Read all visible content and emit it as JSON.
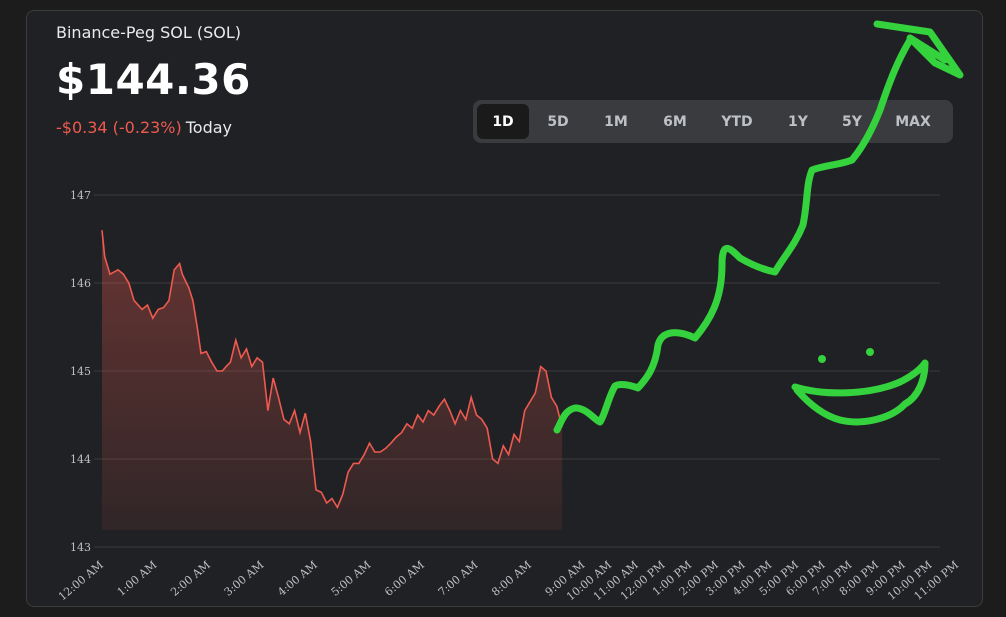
{
  "header": {
    "asset_name": "Binance-Peg SOL (SOL)",
    "price": "$144.36",
    "change": "-$0.34 (-0.23%)",
    "period": "Today"
  },
  "ranges": [
    "1D",
    "5D",
    "1M",
    "6M",
    "YTD",
    "1Y",
    "5Y",
    "MAX"
  ],
  "active_range": "1D",
  "colors": {
    "line": "#ee5a4f",
    "scribble": "#34d23c",
    "grid": "#3c3c3c",
    "change": "#ee5a4f"
  },
  "chart_data": {
    "type": "line",
    "ylim": [
      143,
      147
    ],
    "y_ticks": [
      "143",
      "144",
      "145",
      "146",
      "147"
    ],
    "x_ticks": [
      "12:00 AM",
      "1:00 AM",
      "2:00 AM",
      "3:00 AM",
      "4:00 AM",
      "5:00 AM",
      "6:00 AM",
      "7:00 AM",
      "8:00 AM",
      "9:00 AM",
      "10:00 AM",
      "11:00 AM",
      "12:00 PM",
      "1:00 PM",
      "2:00 PM",
      "3:00 PM",
      "4:00 PM",
      "5:00 PM",
      "6:00 PM",
      "7:00 PM",
      "8:00 PM",
      "9:00 PM",
      "10:00 PM",
      "11:00 PM"
    ],
    "series": [
      {
        "x": [
          0,
          0.05,
          0.15,
          0.3,
          0.4,
          0.5,
          0.6,
          0.75,
          0.85,
          0.95,
          1.05,
          1.15,
          1.25,
          1.35,
          1.45,
          1.5,
          1.58,
          1.62,
          1.7,
          1.78,
          1.85,
          1.95,
          2.05,
          2.15,
          2.25,
          2.32,
          2.4,
          2.5,
          2.6,
          2.7,
          2.8,
          2.9,
          3.0,
          3.1,
          3.2,
          3.3,
          3.4,
          3.5,
          3.6,
          3.7,
          3.8,
          3.9,
          4.0,
          4.1,
          4.2,
          4.3,
          4.4,
          4.5,
          4.6,
          4.7,
          4.8,
          4.9,
          5.0,
          5.1,
          5.2,
          5.3,
          5.4,
          5.5,
          5.6,
          5.7,
          5.8,
          5.9,
          6.0,
          6.1,
          6.2,
          6.3,
          6.4,
          6.5,
          6.6,
          6.7,
          6.8,
          6.9,
          7.0,
          7.1,
          7.2,
          7.3,
          7.4,
          7.5,
          7.6,
          7.7,
          7.8,
          7.9,
          8.0,
          8.1,
          8.2,
          8.3,
          8.4,
          8.5,
          8.6
        ],
        "y": [
          146.6,
          146.3,
          146.1,
          146.15,
          146.1,
          146.0,
          145.8,
          145.7,
          145.75,
          145.6,
          145.7,
          145.72,
          145.8,
          146.15,
          146.22,
          146.1,
          146.0,
          145.95,
          145.8,
          145.5,
          145.2,
          145.22,
          145.1,
          145.0,
          145.0,
          145.05,
          145.1,
          145.35,
          145.15,
          145.25,
          145.05,
          145.15,
          145.1,
          144.55,
          144.92,
          144.7,
          144.45,
          144.4,
          144.55,
          144.3,
          144.52,
          144.2,
          143.65,
          143.62,
          143.5,
          143.55,
          143.45,
          143.6,
          143.85,
          143.95,
          143.95,
          144.05,
          144.18,
          144.08,
          144.08,
          144.12,
          144.18,
          144.25,
          144.3,
          144.4,
          144.35,
          144.5,
          144.42,
          144.55,
          144.5,
          144.6,
          144.68,
          144.55,
          144.4,
          144.55,
          144.45,
          144.7,
          144.5,
          144.45,
          144.35,
          144.0,
          143.95,
          144.15,
          144.05,
          144.28,
          144.2,
          144.55,
          144.65,
          144.75,
          145.05,
          145.0,
          144.7,
          144.6,
          144.36
        ],
        "color": "#ee5a4f"
      }
    ],
    "grid": true
  }
}
